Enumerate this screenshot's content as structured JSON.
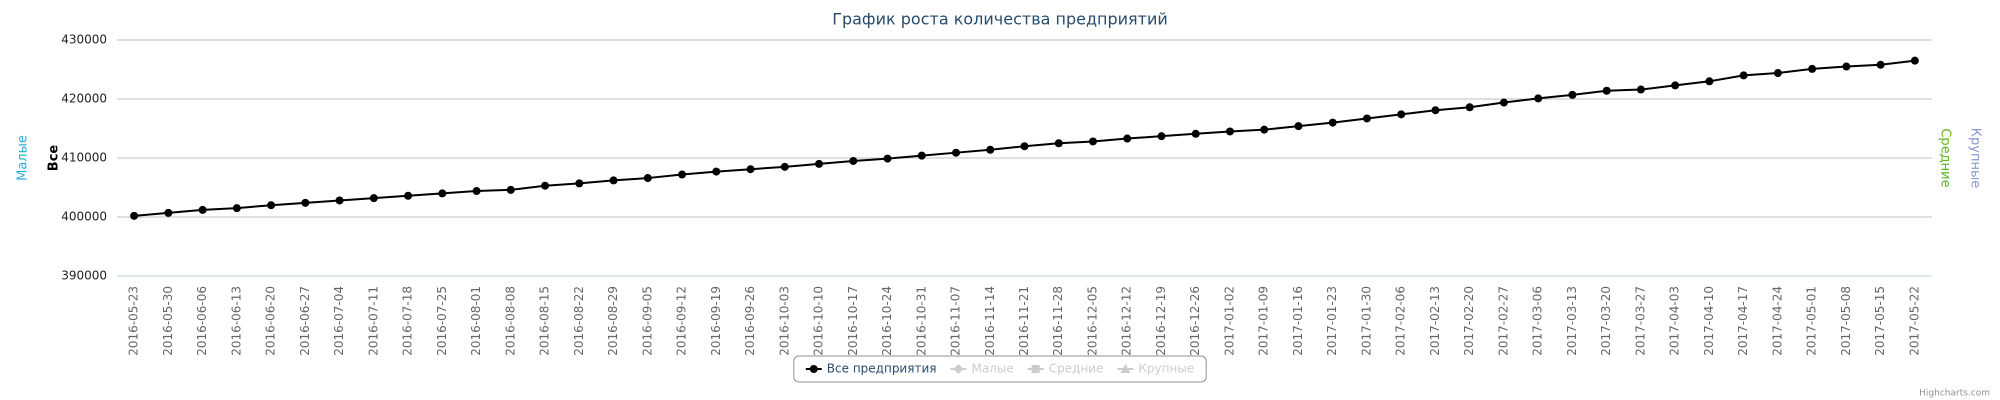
{
  "chart_data": {
    "type": "line",
    "title": "График роста количества предприятий",
    "categories": [
      "2016-05-23",
      "2016-05-30",
      "2016-06-06",
      "2016-06-13",
      "2016-06-20",
      "2016-06-27",
      "2016-07-04",
      "2016-07-11",
      "2016-07-18",
      "2016-07-25",
      "2016-08-01",
      "2016-08-08",
      "2016-08-15",
      "2016-08-22",
      "2016-08-29",
      "2016-09-05",
      "2016-09-12",
      "2016-09-19",
      "2016-09-26",
      "2016-10-03",
      "2016-10-10",
      "2016-10-17",
      "2016-10-24",
      "2016-10-31",
      "2016-11-07",
      "2016-11-14",
      "2016-11-21",
      "2016-11-28",
      "2016-12-05",
      "2016-12-12",
      "2016-12-19",
      "2016-12-26",
      "2017-01-02",
      "2017-01-09",
      "2017-01-16",
      "2017-01-23",
      "2017-01-30",
      "2017-02-06",
      "2017-02-13",
      "2017-02-20",
      "2017-02-27",
      "2017-03-06",
      "2017-03-13",
      "2017-03-20",
      "2017-03-27",
      "2017-04-03",
      "2017-04-10",
      "2017-04-17",
      "2017-04-24",
      "2017-05-01",
      "2017-05-08",
      "2017-05-15",
      "2017-05-22"
    ],
    "series": [
      {
        "name": "Все предприятия",
        "color": "#000000",
        "marker": "circle",
        "values": [
          400200,
          400700,
          401200,
          401500,
          402000,
          402400,
          402800,
          403200,
          403600,
          404000,
          404400,
          404600,
          405300,
          405700,
          406200,
          406600,
          407200,
          407700,
          408100,
          408500,
          409000,
          409500,
          409900,
          410400,
          410900,
          411400,
          412000,
          412500,
          412800,
          413300,
          413700,
          414100,
          414500,
          414800,
          415400,
          416000,
          416700,
          417400,
          418100,
          418600,
          419400,
          420100,
          420700,
          421400,
          421600,
          422300,
          423000,
          424000,
          424400,
          425100,
          425500,
          425800,
          426500
        ]
      },
      {
        "name": "Малые",
        "color": "#cccccc",
        "marker": "diamond",
        "hidden": true
      },
      {
        "name": "Средние",
        "color": "#cccccc",
        "marker": "square",
        "hidden": true
      },
      {
        "name": "Крупные",
        "color": "#cccccc",
        "marker": "triangle",
        "hidden": true
      }
    ],
    "axis_titles": [
      {
        "text": "Малые",
        "color": "#2ab0d4",
        "side": "left"
      },
      {
        "text": "Все",
        "color": "#000000",
        "side": "left"
      },
      {
        "text": "Средние",
        "color": "#5cb820",
        "side": "right"
      },
      {
        "text": "Крупные",
        "color": "#8a9ad0",
        "side": "right"
      }
    ],
    "ylim": [
      390000,
      430000
    ],
    "yticks": [
      390000,
      400000,
      410000,
      420000,
      430000
    ],
    "grid": true,
    "legend": "bottom",
    "credits": "Highcharts.com"
  }
}
